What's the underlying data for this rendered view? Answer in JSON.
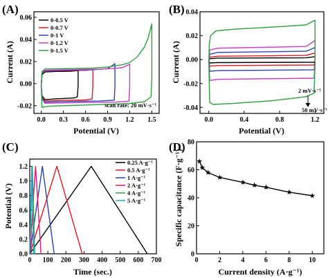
{
  "chart_data": [
    {
      "panel": "(A)",
      "type": "line",
      "xlabel": "Potential (V)",
      "ylabel": "Current (A)",
      "xlim": [
        -0.1,
        1.6
      ],
      "ylim": [
        -0.027,
        0.065
      ],
      "xticks": [
        "0.0",
        "0.3",
        "0.6",
        "0.9",
        "1.2",
        "1.5"
      ],
      "xtick_values": [
        0,
        0.3,
        0.6,
        0.9,
        1.2,
        1.5
      ],
      "yticks": [
        "-0.02",
        "0.00",
        "0.02",
        "0.04",
        "0.06"
      ],
      "ytick_values": [
        -0.02,
        0,
        0.02,
        0.04,
        0.06
      ],
      "legend_position": "top-left",
      "annotation": "scan rate: 20 mV·s⁻¹",
      "series": [
        {
          "name": "0-0.5 V",
          "color": "#000000",
          "points": [
            [
              0,
              -0.002
            ],
            [
              0.01,
              0.008
            ],
            [
              0.05,
              0.0105
            ],
            [
              0.2,
              0.011
            ],
            [
              0.4,
              0.0112
            ],
            [
              0.5,
              0.0118
            ],
            [
              0.5,
              -0.002
            ],
            [
              0.49,
              -0.012
            ],
            [
              0.45,
              -0.013
            ],
            [
              0.2,
              -0.0138
            ],
            [
              0.05,
              -0.0145
            ],
            [
              0.01,
              -0.011
            ],
            [
              0,
              -0.002
            ]
          ]
        },
        {
          "name": "0-0.7 V",
          "color": "#e0191e",
          "points": [
            [
              0,
              -0.002
            ],
            [
              0.01,
              0.009
            ],
            [
              0.05,
              0.0112
            ],
            [
              0.3,
              0.0118
            ],
            [
              0.6,
              0.012
            ],
            [
              0.7,
              0.0128
            ],
            [
              0.7,
              -0.002
            ],
            [
              0.69,
              -0.014
            ],
            [
              0.6,
              -0.0148
            ],
            [
              0.3,
              -0.0152
            ],
            [
              0.05,
              -0.0158
            ],
            [
              0.01,
              -0.012
            ],
            [
              0,
              -0.002
            ]
          ]
        },
        {
          "name": "0-1 V",
          "color": "#2b3fb5",
          "points": [
            [
              0,
              -0.002
            ],
            [
              0.01,
              0.0095
            ],
            [
              0.05,
              0.0115
            ],
            [
              0.3,
              0.012
            ],
            [
              0.7,
              0.0125
            ],
            [
              0.9,
              0.0135
            ],
            [
              1.0,
              0.018
            ],
            [
              1.0,
              -0.003
            ],
            [
              0.99,
              -0.015
            ],
            [
              0.8,
              -0.0158
            ],
            [
              0.4,
              -0.0162
            ],
            [
              0.05,
              -0.0168
            ],
            [
              0.01,
              -0.013
            ],
            [
              0,
              -0.002
            ]
          ]
        },
        {
          "name": "0-1.2 V",
          "color": "#c43cc4",
          "points": [
            [
              0,
              -0.002
            ],
            [
              0.01,
              0.01
            ],
            [
              0.05,
              0.012
            ],
            [
              0.3,
              0.0125
            ],
            [
              0.8,
              0.013
            ],
            [
              1.0,
              0.0138
            ],
            [
              1.1,
              0.0145
            ],
            [
              1.2,
              0.0175
            ],
            [
              1.2,
              -0.003
            ],
            [
              1.19,
              -0.016
            ],
            [
              1.0,
              -0.0168
            ],
            [
              0.5,
              -0.0172
            ],
            [
              0.05,
              -0.0178
            ],
            [
              0.01,
              -0.014
            ],
            [
              0,
              -0.002
            ]
          ]
        },
        {
          "name": "0-1.5 V",
          "color": "#2d9e3c",
          "points": [
            [
              0,
              -0.002
            ],
            [
              0.01,
              0.011
            ],
            [
              0.05,
              0.0132
            ],
            [
              0.3,
              0.0135
            ],
            [
              0.7,
              0.014
            ],
            [
              0.9,
              0.015
            ],
            [
              1.1,
              0.017
            ],
            [
              1.2,
              0.019
            ],
            [
              1.3,
              0.024
            ],
            [
              1.4,
              0.033
            ],
            [
              1.45,
              0.041
            ],
            [
              1.5,
              0.054
            ],
            [
              1.5,
              0.004
            ],
            [
              1.49,
              -0.012
            ],
            [
              1.4,
              -0.0165
            ],
            [
              1.2,
              -0.018
            ],
            [
              0.8,
              -0.019
            ],
            [
              0.4,
              -0.0198
            ],
            [
              0.1,
              -0.0205
            ],
            [
              0.01,
              -0.0215
            ],
            [
              0,
              -0.002
            ]
          ]
        }
      ]
    },
    {
      "panel": "(B)",
      "type": "line",
      "xlabel": "Potential (V)",
      "ylabel": "Current (A)",
      "xlim": [
        -0.1,
        1.3
      ],
      "ylim": [
        -0.045,
        0.04
      ],
      "xticks": [
        "0.0",
        "0.4",
        "0.8",
        "1.2"
      ],
      "xtick_values": [
        0,
        0.4,
        0.8,
        1.2
      ],
      "yticks": [
        "-0.04",
        "-0.02",
        "0.00",
        "0.02",
        "0.04"
      ],
      "ytick_values": [
        -0.04,
        -0.02,
        0,
        0.02,
        0.04
      ],
      "annotation_top": "2 mV·s⁻¹",
      "annotation_bottom": "50 mV·s⁻¹",
      "series": [
        {
          "color": "#000000",
          "points": [
            [
              0,
              -0.001
            ],
            [
              0.01,
              0.0008
            ],
            [
              0.1,
              0.0012
            ],
            [
              1.1,
              0.0015
            ],
            [
              1.2,
              0.0025
            ],
            [
              1.2,
              -0.001
            ],
            [
              1.19,
              -0.0022
            ],
            [
              0.1,
              -0.0025
            ],
            [
              0.01,
              -0.0028
            ],
            [
              0,
              -0.001
            ]
          ]
        },
        {
          "color": "#e0191e",
          "points": [
            [
              0,
              -0.001
            ],
            [
              0.01,
              0.002
            ],
            [
              0.1,
              0.0028
            ],
            [
              1.1,
              0.0035
            ],
            [
              1.2,
              0.0055
            ],
            [
              1.2,
              -0.002
            ],
            [
              1.19,
              -0.0045
            ],
            [
              0.1,
              -0.005
            ],
            [
              0.01,
              -0.0055
            ],
            [
              0,
              -0.001
            ]
          ]
        },
        {
          "color": "#2b3fb5",
          "points": [
            [
              0,
              -0.001
            ],
            [
              0.01,
              0.0045
            ],
            [
              0.1,
              0.006
            ],
            [
              1.1,
              0.007
            ],
            [
              1.2,
              0.01
            ],
            [
              1.2,
              -0.003
            ],
            [
              1.19,
              -0.0085
            ],
            [
              0.1,
              -0.0092
            ],
            [
              0.01,
              -0.0098
            ],
            [
              0,
              -0.001
            ]
          ]
        },
        {
          "color": "#c43cc4",
          "points": [
            [
              0,
              -0.002
            ],
            [
              0.01,
              0.008
            ],
            [
              0.1,
              0.0095
            ],
            [
              1.1,
              0.011
            ],
            [
              1.2,
              0.016
            ],
            [
              1.2,
              -0.004
            ],
            [
              1.19,
              -0.0155
            ],
            [
              0.1,
              -0.0165
            ],
            [
              0.01,
              -0.0175
            ],
            [
              0,
              -0.002
            ]
          ]
        },
        {
          "color": "#2d9e3c",
          "points": [
            [
              0,
              -0.003
            ],
            [
              0.005,
              0.012
            ],
            [
              0.02,
              0.02
            ],
            [
              0.08,
              0.024
            ],
            [
              0.3,
              0.0255
            ],
            [
              0.8,
              0.0275
            ],
            [
              1.1,
              0.029
            ],
            [
              1.2,
              0.033
            ],
            [
              1.2,
              -0.005
            ],
            [
              1.19,
              -0.028
            ],
            [
              1.1,
              -0.031
            ],
            [
              0.7,
              -0.0345
            ],
            [
              0.3,
              -0.0365
            ],
            [
              0.05,
              -0.0375
            ],
            [
              0.01,
              -0.036
            ],
            [
              0,
              -0.003
            ]
          ]
        }
      ]
    },
    {
      "panel": "(C)",
      "type": "line",
      "xlabel": "Time (sec.)",
      "ylabel": "Potential (V)",
      "xlim": [
        0,
        700
      ],
      "ylim": [
        0,
        1.3
      ],
      "xticks": [
        "0",
        "100",
        "200",
        "300",
        "400",
        "500",
        "600",
        "700"
      ],
      "xtick_values": [
        0,
        100,
        200,
        300,
        400,
        500,
        600,
        700
      ],
      "yticks": [
        "0.0",
        "0.2",
        "0.4",
        "0.6",
        "0.8",
        "1.0",
        "1.2"
      ],
      "ytick_values": [
        0,
        0.2,
        0.4,
        0.6,
        0.8,
        1.0,
        1.2
      ],
      "legend_position": "top-right",
      "series": [
        {
          "name": "0.25 A·g⁻¹",
          "color": "#000000",
          "points": [
            [
              0,
              0
            ],
            [
              340,
              1.2
            ],
            [
              650,
              0
            ]
          ]
        },
        {
          "name": "0.5 A·g⁻¹",
          "color": "#e0191e",
          "points": [
            [
              0,
              0
            ],
            [
              150,
              1.2
            ],
            [
              290,
              0
            ]
          ]
        },
        {
          "name": "1 A·g⁻¹",
          "color": "#2b3fb5",
          "points": [
            [
              0,
              0
            ],
            [
              70,
              1.2
            ],
            [
              135,
              0
            ]
          ]
        },
        {
          "name": "2 A·g⁻¹",
          "color": "#e0176e",
          "points": [
            [
              0,
              0
            ],
            [
              32,
              1.2
            ],
            [
              62,
              0
            ]
          ]
        },
        {
          "name": "4 A·g⁻¹",
          "color": "#2d9e3c",
          "points": [
            [
              0,
              0
            ],
            [
              14,
              1.2
            ],
            [
              27,
              0
            ]
          ]
        },
        {
          "name": "5 A·g⁻¹",
          "color": "#1fa7c9",
          "points": [
            [
              0,
              0
            ],
            [
              11,
              1.2
            ],
            [
              21,
              0
            ]
          ]
        }
      ]
    },
    {
      "panel": "(D)",
      "type": "line",
      "xlabel": "Current density (A·g⁻¹)",
      "ylabel": "Specific capacitance (F·g⁻¹)",
      "xlim": [
        0,
        11
      ],
      "ylim": [
        0,
        80
      ],
      "xticks": [
        "0",
        "2",
        "4",
        "6",
        "8",
        "10"
      ],
      "xtick_values": [
        0,
        2,
        4,
        6,
        8,
        10
      ],
      "yticks": [
        "0",
        "20",
        "40",
        "60",
        "80"
      ],
      "ytick_values": [
        0,
        20,
        40,
        60,
        80
      ],
      "marker": "star",
      "series": [
        {
          "color": "#000000",
          "x": [
            0.25,
            0.5,
            1,
            2,
            4,
            5,
            6,
            8,
            10
          ],
          "y": [
            66,
            61.5,
            58,
            54.5,
            51,
            49,
            47.5,
            44,
            41.5
          ]
        }
      ]
    }
  ]
}
